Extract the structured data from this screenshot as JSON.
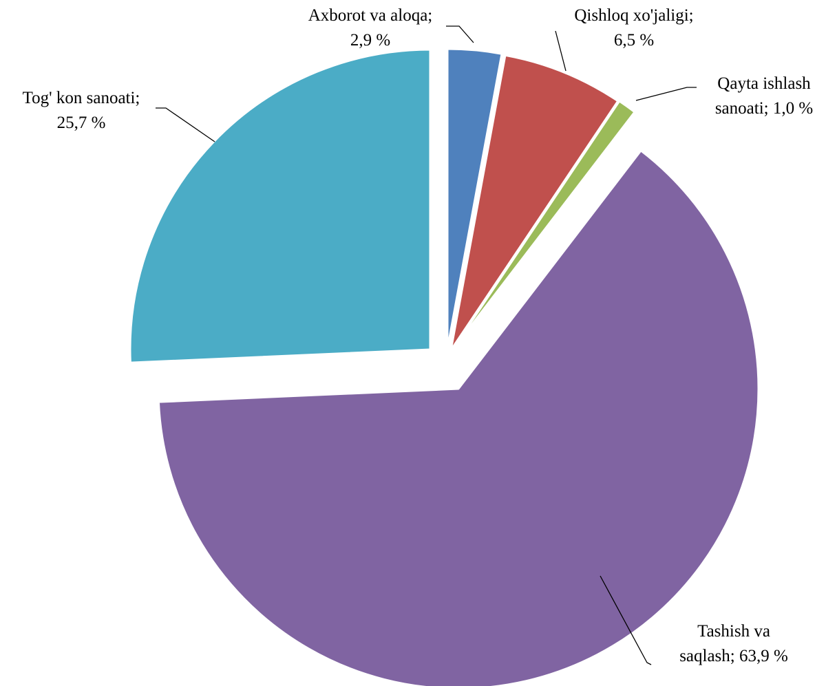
{
  "chart_data": {
    "type": "pie",
    "title": "",
    "slices": [
      {
        "name": "Axborot va aloqa",
        "value": 2.9,
        "label_line1": "Axborot va aloqa;",
        "label_line2": "2,9 %",
        "color": "#4F81BD"
      },
      {
        "name": "Qishloq xo'jaligi",
        "value": 6.5,
        "label_line1": "Qishloq xo'jaligi;",
        "label_line2": "6,5 %",
        "color": "#C0504D"
      },
      {
        "name": "Qayta ishlash sanoati",
        "value": 1.0,
        "label_line1": "Qayta ishlash",
        "label_line2": "sanoati; 1,0 %",
        "color": "#9BBB59"
      },
      {
        "name": "Tashish va saqlash",
        "value": 63.9,
        "label_line1": "Tashish va",
        "label_line2": "saqlash; 63,9 %",
        "color": "#8064A2"
      },
      {
        "name": "Tog' kon sanoati",
        "value": 25.7,
        "label_line1": "Tog' kon sanoati;",
        "label_line2": "25,7 %",
        "color": "#4BACC6"
      }
    ],
    "start_angle_deg": 0,
    "direction": "clockwise",
    "exploded": true,
    "legend": "none",
    "data_labels": "outside-with-leader-lines"
  }
}
